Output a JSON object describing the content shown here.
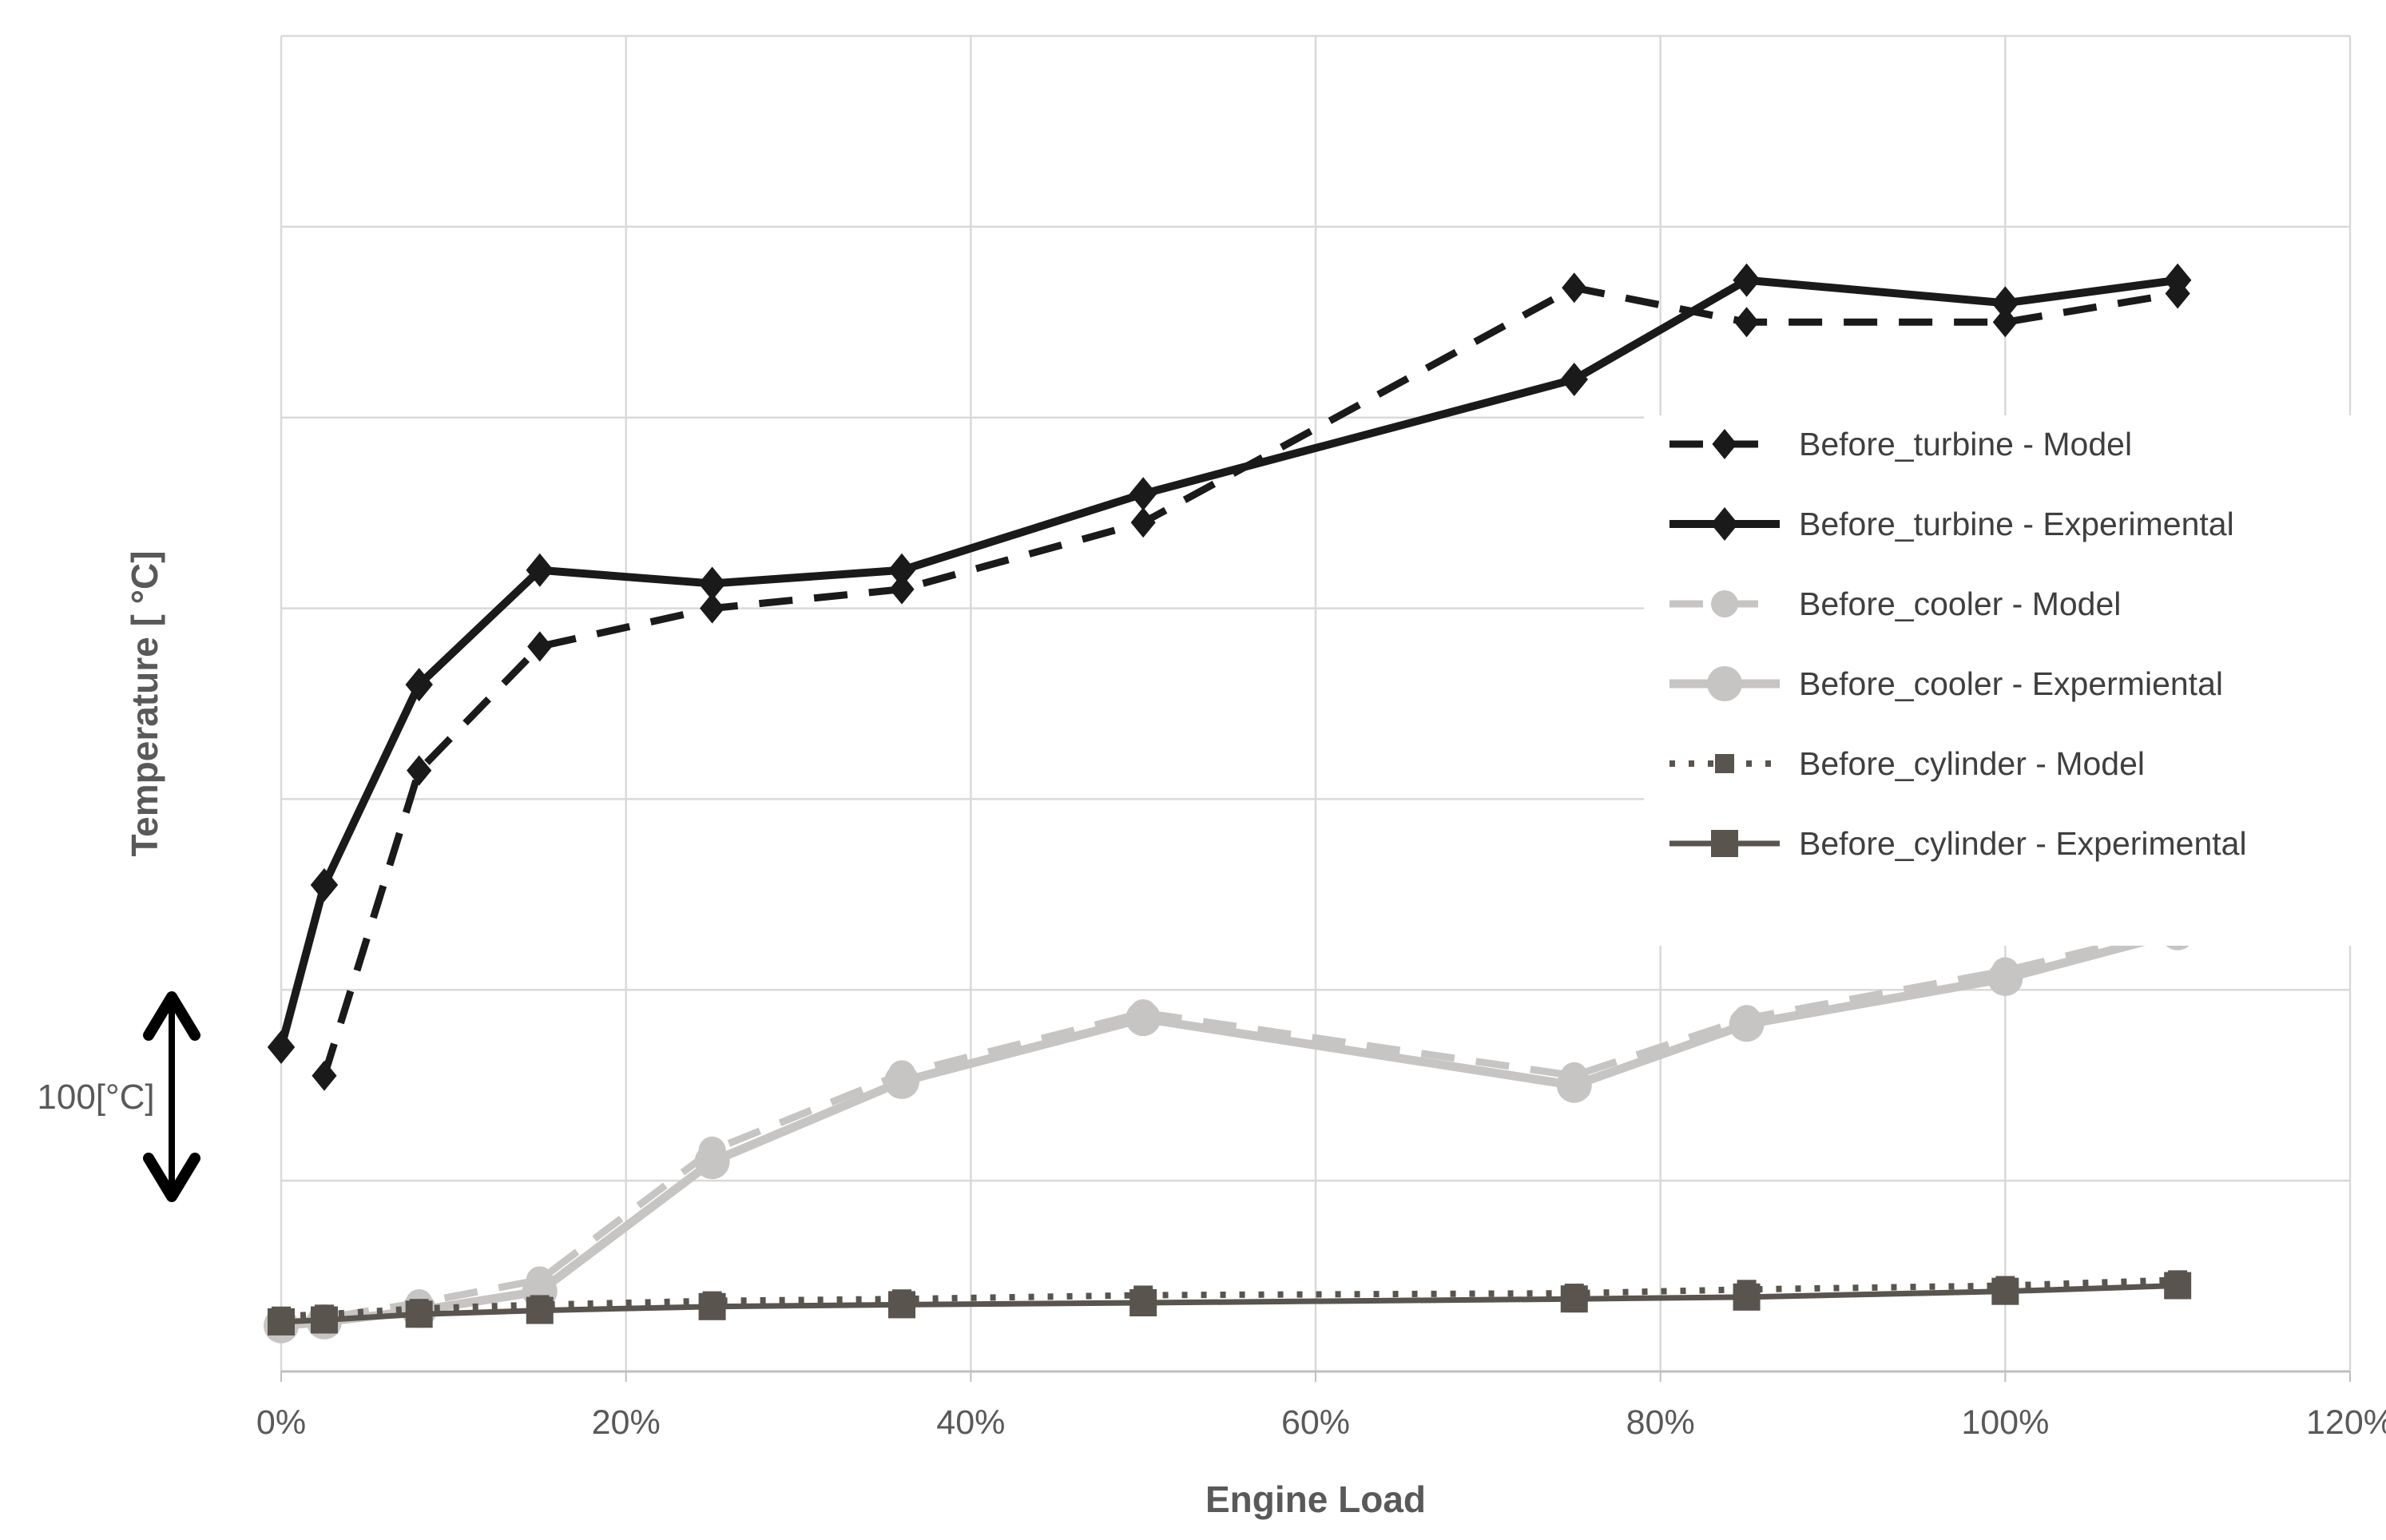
{
  "ui": {
    "background": "#ffffff",
    "grid_color": "#d9d9d9",
    "axis_line_color": "#bfbfbf",
    "tick_label_color": "#595959",
    "axis_title_color": "#595959",
    "legend_text_color": "#3f3f3f",
    "annotation_text_color": "#595959",
    "annotation_arrow_color": "#000000"
  },
  "chart_data": {
    "type": "line",
    "title": "",
    "xlabel": "Engine Load",
    "ylabel": "Temperature [ °C]",
    "scale_annotation": "100[°C]",
    "x_tick_labels": [
      "0%",
      "20%",
      "40%",
      "60%",
      "80%",
      "100%",
      "120%"
    ],
    "x_ticks": [
      0,
      20,
      40,
      60,
      80,
      100,
      120
    ],
    "xlim": [
      0,
      120
    ],
    "ylim": [
      0,
      700
    ],
    "y_note": "no numeric y tick labels shown; horizontal gridlines every 100 °C (see scale_annotation arrow)",
    "grid": true,
    "legend_position": "inside-right",
    "x": [
      0,
      2.5,
      8,
      15,
      25,
      36,
      50,
      75,
      85,
      100,
      110
    ],
    "series": [
      {
        "name": "Before_turbine - Model",
        "color": "#1a1a1a",
        "line": "dashed",
        "marker": "diamond",
        "x": [
          2.5,
          8,
          15,
          25,
          36,
          50,
          75,
          85,
          100,
          110
        ],
        "values": [
          155,
          315,
          380,
          400,
          410,
          445,
          568,
          550,
          550,
          565
        ]
      },
      {
        "name": "Before_turbine - Experimental",
        "color": "#1a1a1a",
        "line": "solid",
        "marker": "diamond",
        "x": [
          0,
          2.5,
          8,
          15,
          25,
          36,
          50,
          75,
          85,
          100,
          110
        ],
        "values": [
          170,
          255,
          360,
          420,
          413,
          420,
          460,
          520,
          572,
          560,
          572
        ]
      },
      {
        "name": "Before_cooler - Model",
        "color": "#c7c5c3",
        "line": "dashed",
        "marker": "circle",
        "x": [
          0,
          2.5,
          8,
          15,
          25,
          36,
          50,
          75,
          85,
          100,
          110
        ],
        "values": [
          25,
          28,
          36,
          48,
          116,
          156,
          188,
          155,
          185,
          210,
          232
        ]
      },
      {
        "name": "Before_cooler - Expermiental",
        "color": "#c7c5c3",
        "line": "solid",
        "marker": "circle",
        "x": [
          0,
          2.5,
          8,
          15,
          25,
          36,
          50,
          75,
          85,
          100,
          110
        ],
        "values": [
          24,
          26,
          32,
          42,
          110,
          152,
          185,
          150,
          182,
          206,
          230
        ]
      },
      {
        "name": "Before_cylinder - Model",
        "color": "#5a544e",
        "line": "dotted",
        "marker": "square",
        "x": [
          0,
          2.5,
          8,
          15,
          25,
          36,
          50,
          75,
          85,
          100,
          110
        ],
        "values": [
          29,
          30,
          33,
          35,
          37,
          38,
          40,
          41,
          43,
          45,
          48
        ]
      },
      {
        "name": "Before_cylinder - Experimental",
        "color": "#5a544e",
        "line": "solid",
        "marker": "square",
        "x": [
          0,
          2.5,
          8,
          15,
          25,
          36,
          50,
          75,
          85,
          100,
          110
        ],
        "values": [
          26,
          27,
          30,
          32,
          34,
          35,
          36,
          38,
          39,
          42,
          45
        ]
      }
    ]
  }
}
